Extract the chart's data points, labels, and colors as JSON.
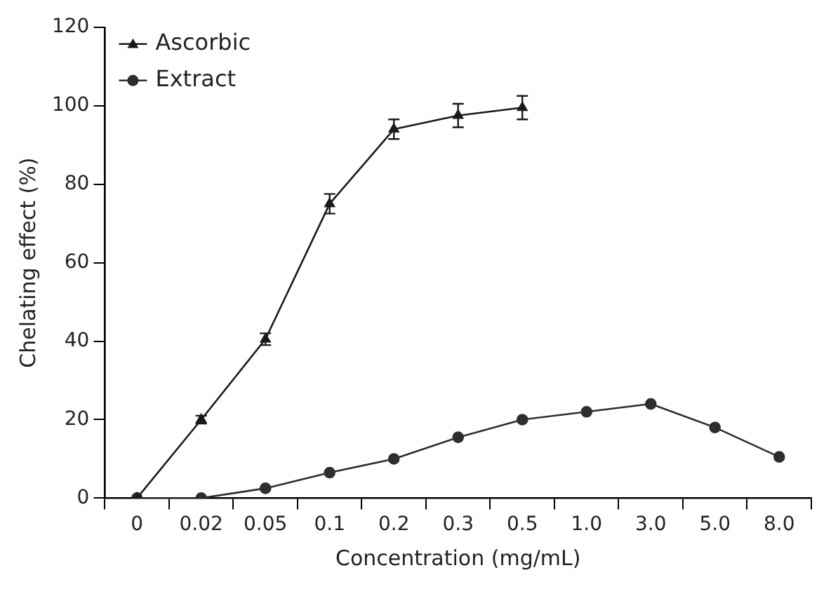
{
  "chart_data": {
    "type": "line",
    "xlabel": "Concentration (mg/mL)",
    "ylabel": "Chelating effect (%)",
    "categories": [
      "0",
      "0.02",
      "0.05",
      "0.1",
      "0.2",
      "0.3",
      "0.5",
      "1.0",
      "3.0",
      "5.0",
      "8.0"
    ],
    "series": [
      {
        "name": "Ascorbic",
        "color": "#1a1a1a",
        "marker": "triangle",
        "values": [
          0,
          20,
          40.5,
          75,
          94,
          97.5,
          99.5,
          null,
          null,
          null,
          null
        ],
        "errors": [
          null,
          1,
          1.5,
          2.5,
          2.5,
          3,
          3,
          null,
          null,
          null,
          null
        ]
      },
      {
        "name": "Extract",
        "color": "#2e2e2e",
        "marker": "circle",
        "values": [
          0,
          0,
          2.5,
          6.5,
          10,
          15.5,
          20,
          22,
          24,
          18,
          10.5
        ]
      }
    ],
    "ylim": [
      0,
      120
    ],
    "yticks": [
      0,
      20,
      40,
      60,
      80,
      100,
      120
    ],
    "grid": false,
    "legend": "top left",
    "line_style": "solid"
  }
}
